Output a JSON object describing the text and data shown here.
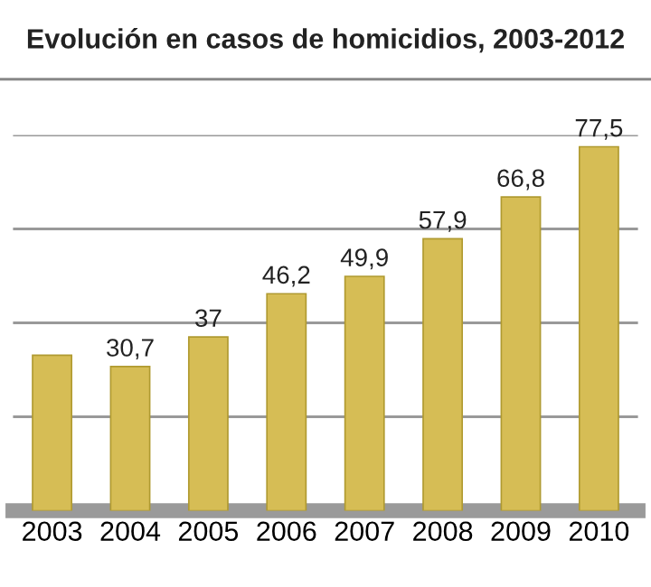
{
  "chart_data": {
    "type": "bar",
    "title": "Evolución en casos de homicidios, 2003-2012",
    "categories": [
      "2003",
      "2004",
      "2005",
      "2006",
      "2007",
      "2008",
      "2009",
      "2010"
    ],
    "values": [
      33.1,
      30.7,
      37,
      46.2,
      49.9,
      57.9,
      66.8,
      77.5
    ],
    "value_labels": [
      null,
      "30,7",
      "37",
      "46,2",
      "49,9",
      "57,9",
      "66,8",
      "77,5"
    ],
    "color": "#d6bd55",
    "ylim": [
      0,
      80
    ],
    "yticks": [
      {
        "value": 20,
        "label": null
      },
      {
        "value": 40,
        "label": null
      },
      {
        "value": 60,
        "label": null
      },
      {
        "value": 80,
        "label": null
      }
    ],
    "tick_labels": "x",
    "grid": "y"
  }
}
